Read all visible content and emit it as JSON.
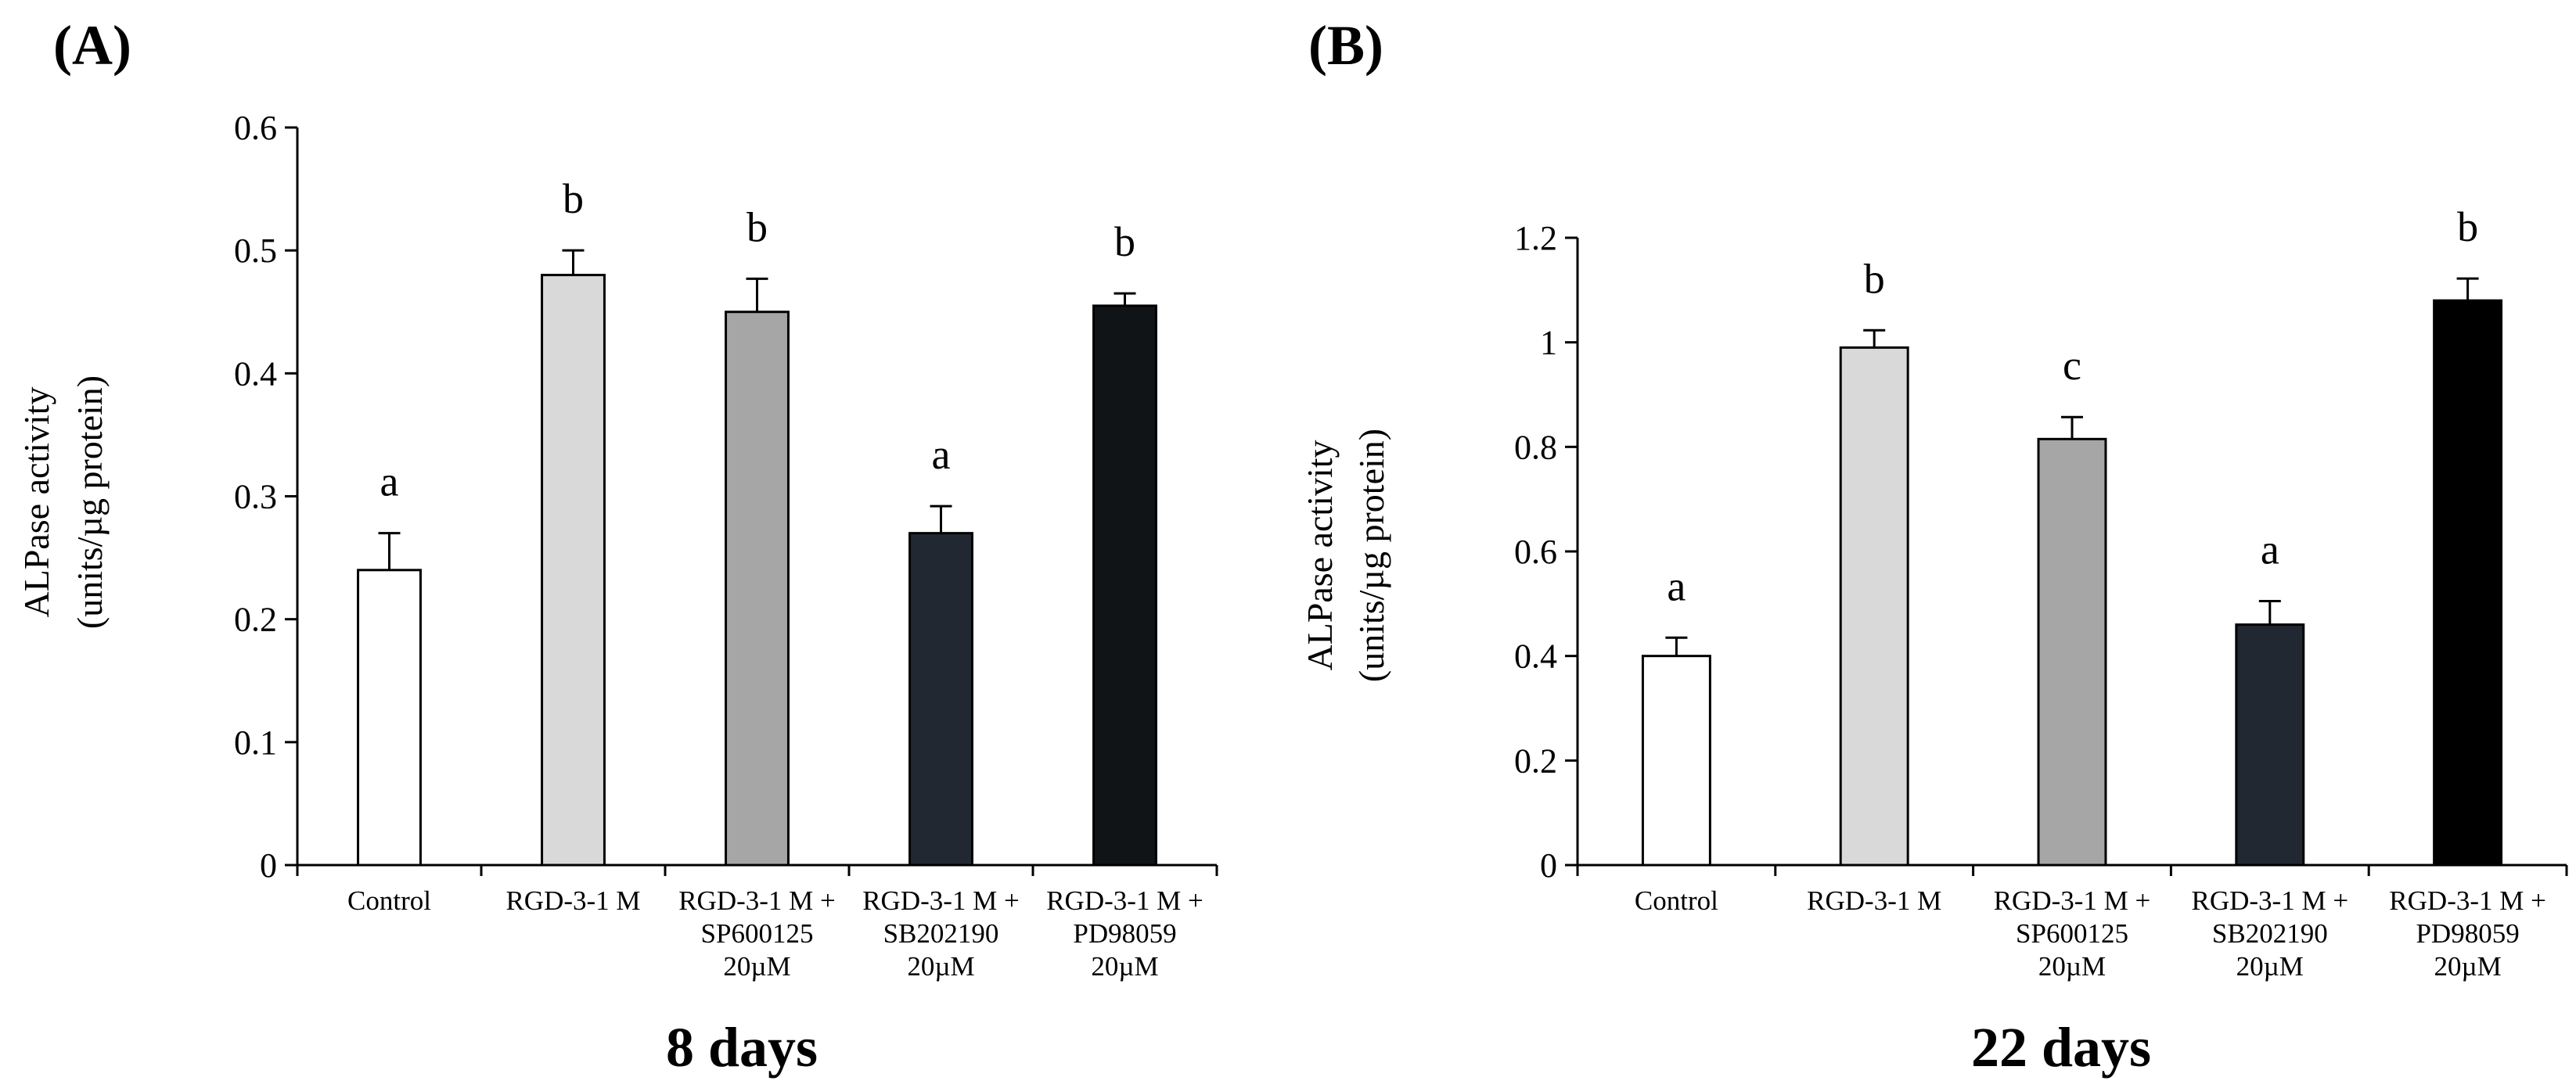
{
  "colors": {
    "background": "#ffffff",
    "axis": "#000000",
    "bar_outline": "#000000",
    "bar_fills": [
      "#ffffff",
      "#d9d9d9",
      "#a6a6a6",
      "#222831",
      "#111417"
    ]
  },
  "chart_data": [
    {
      "type": "bar",
      "panel_label": "(A)",
      "xlabel": "8 days",
      "ylabel_lines": [
        "ALPase activity",
        "(units/µg protein)"
      ],
      "ylim": [
        0,
        0.6
      ],
      "yticks": [
        "0",
        "0.1",
        "0.2",
        "0.3",
        "0.4",
        "0.5",
        "0.6"
      ],
      "ytick_values": [
        0,
        0.1,
        0.2,
        0.3,
        0.4,
        0.5,
        0.6
      ],
      "grid": false,
      "categories": [
        [
          "Control"
        ],
        [
          "RGD-3-1 M"
        ],
        [
          "RGD-3-1 M +",
          "SP600125",
          "20µM"
        ],
        [
          "RGD-3-1 M +",
          "SB202190",
          "20µM"
        ],
        [
          "RGD-3-1 M +",
          "PD98059",
          "20µM"
        ]
      ],
      "values": [
        0.24,
        0.48,
        0.45,
        0.27,
        0.455
      ],
      "errors": [
        0.03,
        0.02,
        0.027,
        0.022,
        0.01
      ],
      "significance_letters": [
        "a",
        "b",
        "b",
        "a",
        "b"
      ],
      "bar_colors": [
        "#ffffff",
        "#d9d9d9",
        "#a6a6a6",
        "#222831",
        "#111417"
      ]
    },
    {
      "type": "bar",
      "panel_label": "(B)",
      "xlabel": "22 days",
      "ylabel_lines": [
        "ALPase activity",
        "(units/µg protein)"
      ],
      "ylim": [
        0,
        1.2
      ],
      "yticks": [
        "0",
        "0.2",
        "0.4",
        "0.6",
        "0.8",
        "1",
        "1.2"
      ],
      "ytick_values": [
        0,
        0.2,
        0.4,
        0.6,
        0.8,
        1.0,
        1.2
      ],
      "grid": false,
      "categories": [
        [
          "Control"
        ],
        [
          "RGD-3-1 M"
        ],
        [
          "RGD-3-1 M +",
          "SP600125",
          "20µM"
        ],
        [
          "RGD-3-1 M +",
          "SB202190",
          "20µM"
        ],
        [
          "RGD-3-1 M +",
          "PD98059",
          "20µM"
        ]
      ],
      "values": [
        0.4,
        0.99,
        0.815,
        0.46,
        1.08
      ],
      "errors": [
        0.035,
        0.033,
        0.042,
        0.045,
        0.042
      ],
      "significance_letters": [
        "a",
        "b",
        "c",
        "a",
        "b"
      ],
      "bar_colors": [
        "#ffffff",
        "#d9d9d9",
        "#a6a6a6",
        "#222831",
        "#000000"
      ]
    }
  ]
}
